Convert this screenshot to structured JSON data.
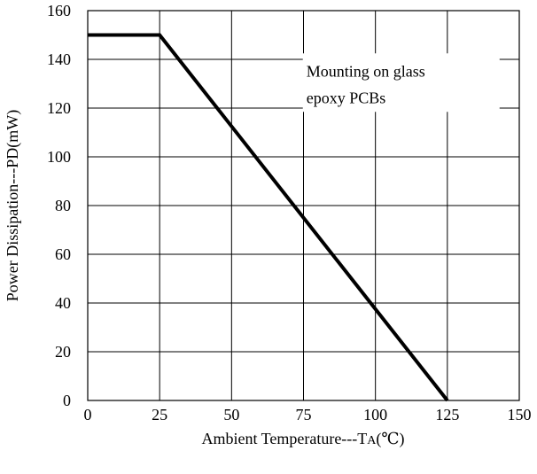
{
  "chart_data": {
    "type": "line",
    "title": "",
    "xlabel_main": "Ambient Temperature---T",
    "xlabel_sub": "A",
    "xlabel_unit": "(℃)",
    "ylabel": "Power Dissipation---PD(mW)",
    "xlim": [
      0,
      150
    ],
    "ylim": [
      0,
      160
    ],
    "x_ticks": [
      0,
      25,
      50,
      75,
      100,
      125,
      150
    ],
    "y_ticks": [
      0,
      20,
      40,
      60,
      80,
      100,
      120,
      140,
      160
    ],
    "grid": true,
    "series": [
      {
        "x": [
          0,
          25,
          125
        ],
        "y": [
          150,
          150,
          0
        ],
        "color": "#000000"
      }
    ],
    "annotation": {
      "lines": [
        "Mounting on glass",
        "epoxy PCBs"
      ],
      "anchor_x": 76,
      "anchor_y": 133
    }
  }
}
